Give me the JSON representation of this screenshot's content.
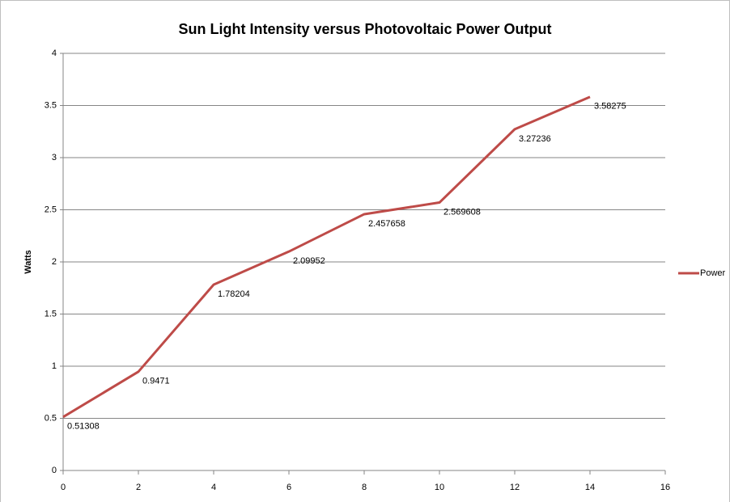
{
  "chart_data": {
    "type": "line",
    "title": "Sun Light Intensity  versus Photovoltaic Power Output",
    "y_label": "Watts",
    "x": [
      0,
      2,
      4,
      6,
      8,
      10,
      12,
      14
    ],
    "series": [
      {
        "name": "Power",
        "color": "#be4b48",
        "values": [
          0.51308,
          0.9471,
          1.78204,
          2.09952,
          2.457658,
          2.569608,
          3.27236,
          3.58275
        ]
      }
    ],
    "xlim": [
      0,
      16
    ],
    "xticks": [
      0,
      2,
      4,
      6,
      8,
      10,
      12,
      14,
      16
    ],
    "ylim": [
      0,
      4
    ],
    "yticks": [
      0,
      0.5,
      1,
      1.5,
      2,
      2.5,
      3,
      3.5,
      4
    ],
    "grid": true,
    "legend": "right",
    "data_labels": true
  }
}
